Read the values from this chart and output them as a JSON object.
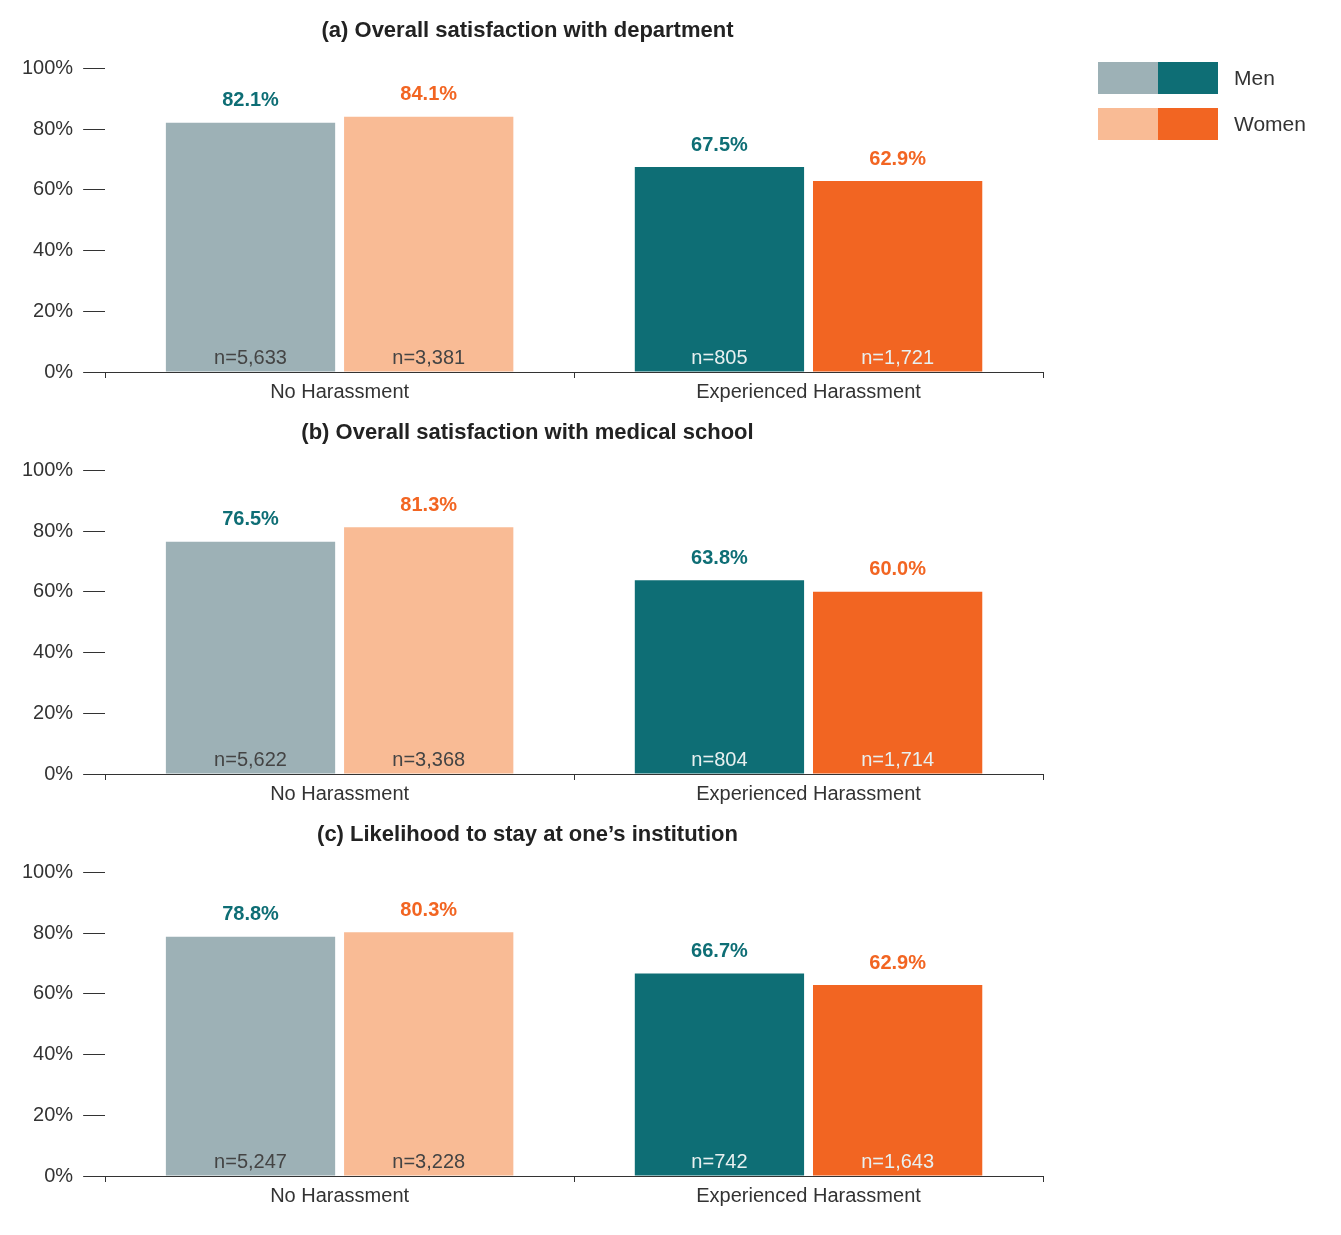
{
  "chart_data": [
    {
      "type": "bar",
      "title": "(a) Overall satisfaction with department",
      "categories": [
        "No Harassment",
        "Experienced Harassment"
      ],
      "legend": "top right",
      "ylim": [
        0,
        100
      ],
      "yticks": [
        {
          "value": 0,
          "label": "0%"
        },
        {
          "value": 20,
          "label": "20%"
        },
        {
          "value": 40,
          "label": "40%"
        },
        {
          "value": 60,
          "label": "60%"
        },
        {
          "value": 80,
          "label": "80%"
        },
        {
          "value": 100,
          "label": "100%"
        }
      ],
      "series": [
        {
          "name": "Men",
          "colors": [
            "#9db1b6",
            "#0e6e75"
          ],
          "values": [
            82.1,
            67.5
          ],
          "value_labels": [
            "82.1%",
            "67.5%"
          ]
        },
        {
          "name": "Women",
          "colors": [
            "#f9bb95",
            "#f26522"
          ],
          "values": [
            84.1,
            62.9
          ],
          "value_labels": [
            "84.1%",
            "62.9%"
          ]
        }
      ],
      "annotations": [
        "n=5,633",
        "n=3,381",
        "n=805",
        "n=1,721"
      ]
    },
    {
      "type": "bar",
      "title": "(b) Overall satisfaction with medical school",
      "categories": [
        "No Harassment",
        "Experienced Harassment"
      ],
      "ylim": [
        0,
        100
      ],
      "yticks": [
        {
          "value": 0,
          "label": "0%"
        },
        {
          "value": 20,
          "label": "20%"
        },
        {
          "value": 40,
          "label": "40%"
        },
        {
          "value": 60,
          "label": "60%"
        },
        {
          "value": 80,
          "label": "80%"
        },
        {
          "value": 100,
          "label": "100%"
        }
      ],
      "series": [
        {
          "colors": [
            "#9db1b6",
            "#0e6e75"
          ],
          "values": [
            76.5,
            63.8
          ],
          "value_labels": [
            "76.5%",
            "63.8%"
          ]
        },
        {
          "colors": [
            "#f9bb95",
            "#f26522"
          ],
          "values": [
            81.3,
            60.0
          ],
          "value_labels": [
            "81.3%",
            "60.0%"
          ]
        }
      ],
      "annotations": [
        "n=5,622",
        "n=3,368",
        "n=804",
        "n=1,714"
      ]
    },
    {
      "type": "bar",
      "title": "(c) Likelihood to stay at one’s institution",
      "categories": [
        "No Harassment",
        "Experienced Harassment"
      ],
      "ylim": [
        0,
        100
      ],
      "yticks": [
        {
          "value": 0,
          "label": "0%"
        },
        {
          "value": 20,
          "label": "20%"
        },
        {
          "value": 40,
          "label": "40%"
        },
        {
          "value": 60,
          "label": "60%"
        },
        {
          "value": 80,
          "label": "80%"
        },
        {
          "value": 100,
          "label": "100%"
        }
      ],
      "series": [
        {
          "colors": [
            "#9db1b6",
            "#0e6e75"
          ],
          "values": [
            78.8,
            66.7
          ],
          "value_labels": [
            "78.8%",
            "66.7%"
          ]
        },
        {
          "colors": [
            "#f9bb95",
            "#f26522"
          ],
          "values": [
            80.3,
            62.9
          ],
          "value_labels": [
            "80.3%",
            "62.9%"
          ]
        }
      ],
      "annotations": [
        "n=5,247",
        "n=3,228",
        "n=742",
        "n=1,643"
      ]
    }
  ]
}
